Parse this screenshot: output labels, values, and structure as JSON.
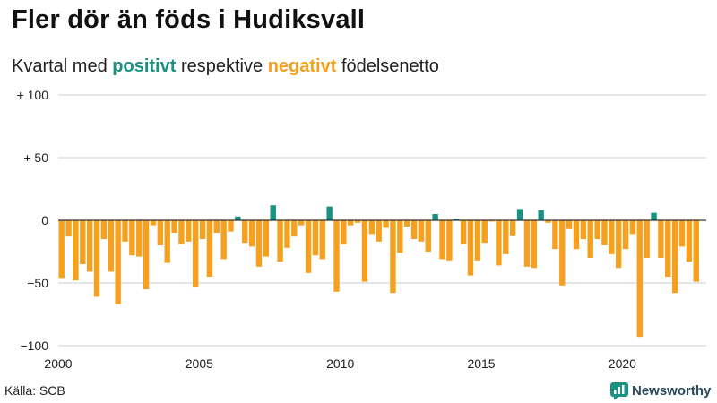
{
  "title": "Fler dör än föds i Hudiksvall",
  "subtitle": {
    "prefix": "Kvartal med",
    "positive": "positivt",
    "middle": "respektive",
    "negative": "negativt",
    "suffix": "födelsenetto"
  },
  "source": "Källa: SCB",
  "brand": {
    "name": "Newsworthy",
    "icon": "newsworthy-logo-icon"
  },
  "colors": {
    "positive": "#1a9281",
    "negative": "#f5a01e",
    "grid": "#cccccc",
    "zero": "#333333"
  },
  "chart_data": {
    "type": "bar",
    "x_start": "2000 Q1",
    "values": [
      -46,
      -13,
      -48,
      -35,
      -41,
      -61,
      -15,
      -41,
      -67,
      -17,
      -28,
      -29,
      -55,
      -4,
      -20,
      -34,
      -10,
      -19,
      -17,
      -53,
      -15,
      -45,
      -10,
      -31,
      -9,
      3,
      -18,
      -21,
      -37,
      -29,
      12,
      -33,
      -22,
      -13,
      -4,
      -42,
      -28,
      -31,
      11,
      -57,
      -19,
      -4,
      -2,
      -49,
      -11,
      -17,
      -6,
      -58,
      -26,
      -5,
      -15,
      -17,
      -25,
      5,
      -31,
      -32,
      1,
      -19,
      -44,
      -32,
      -18,
      -1,
      -36,
      -27,
      -12,
      9,
      -37,
      -38,
      8,
      -2,
      -23,
      -52,
      -7,
      -23,
      -15,
      -30,
      -15,
      -20,
      -27,
      -38,
      -23,
      -11,
      -93,
      -30,
      6,
      -30,
      -45,
      -58,
      -21,
      -33,
      -49
    ],
    "yticks": [
      100,
      50,
      0,
      -50,
      -100
    ],
    "ytick_labels": [
      "+ 100",
      "+  50",
      "0",
      "−50",
      "−100"
    ],
    "xticks": [
      2000,
      2005,
      2010,
      2015,
      2020
    ],
    "xtick_labels": [
      "2000",
      "2005",
      "2010",
      "2015",
      "2020"
    ],
    "ylim": [
      -100,
      100
    ],
    "grid": true
  }
}
